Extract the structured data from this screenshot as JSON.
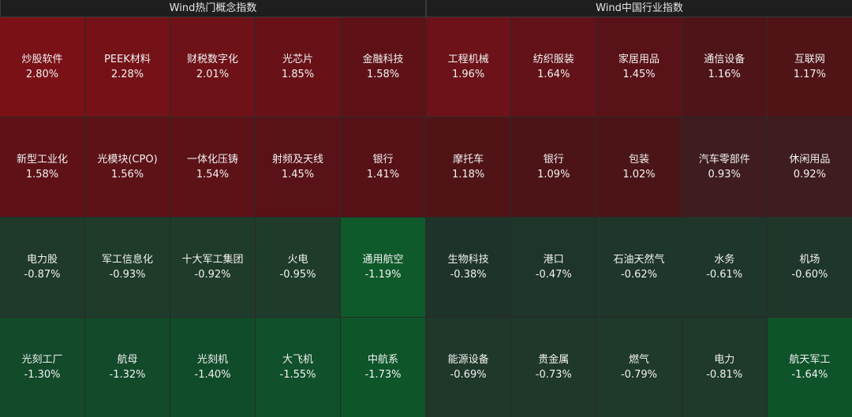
{
  "left": {
    "title": "Wind热门概念指数",
    "tiles": [
      {
        "name": "炒股软件",
        "pct": "2.80%",
        "color": "#7a1117"
      },
      {
        "name": "PEEK材料",
        "pct": "2.28%",
        "color": "#741218"
      },
      {
        "name": "财税数字化",
        "pct": "2.01%",
        "color": "#6e1218"
      },
      {
        "name": "光芯片",
        "pct": "1.85%",
        "color": "#681218"
      },
      {
        "name": "金融科技",
        "pct": "1.58%",
        "color": "#5e1217"
      },
      {
        "name": "新型工业化",
        "pct": "1.58%",
        "color": "#5e1217"
      },
      {
        "name": "光模块(CPO)",
        "pct": "1.56%",
        "color": "#5d1217"
      },
      {
        "name": "一体化压铸",
        "pct": "1.54%",
        "color": "#5c1217"
      },
      {
        "name": "射频及天线",
        "pct": "1.45%",
        "color": "#591217"
      },
      {
        "name": "银行",
        "pct": "1.41%",
        "color": "#571217"
      },
      {
        "name": "电力股",
        "pct": "-0.87%",
        "color": "#1f3a2a"
      },
      {
        "name": "军工信息化",
        "pct": "-0.93%",
        "color": "#1f3b2a"
      },
      {
        "name": "十大军工集团",
        "pct": "-0.92%",
        "color": "#1f3b2a"
      },
      {
        "name": "火电",
        "pct": "-0.95%",
        "color": "#1f3c2a"
      },
      {
        "name": "通用航空",
        "pct": "-1.19%",
        "color": "#0f5a2a"
      },
      {
        "name": "光刻工厂",
        "pct": "-1.30%",
        "color": "#124a2a"
      },
      {
        "name": "航母",
        "pct": "-1.32%",
        "color": "#124a2a"
      },
      {
        "name": "光刻机",
        "pct": "-1.40%",
        "color": "#114c2a"
      },
      {
        "name": "大飞机",
        "pct": "-1.55%",
        "color": "#10502a"
      },
      {
        "name": "中航系",
        "pct": "-1.73%",
        "color": "#0e552a"
      }
    ]
  },
  "right": {
    "title": "Wind中国行业指数",
    "tiles": [
      {
        "name": "工程机械",
        "pct": "1.96%",
        "color": "#6c1218"
      },
      {
        "name": "纺织服装",
        "pct": "1.64%",
        "color": "#621218"
      },
      {
        "name": "家居用品",
        "pct": "1.45%",
        "color": "#591217"
      },
      {
        "name": "通信设备",
        "pct": "1.16%",
        "color": "#4f1417"
      },
      {
        "name": "互联网",
        "pct": "1.17%",
        "color": "#501417"
      },
      {
        "name": "摩托车",
        "pct": "1.18%",
        "color": "#501417"
      },
      {
        "name": "银行",
        "pct": "1.09%",
        "color": "#4d1417"
      },
      {
        "name": "包装",
        "pct": "1.02%",
        "color": "#4b1517"
      },
      {
        "name": "汽车零部件",
        "pct": "0.93%",
        "color": "#3e1c1f"
      },
      {
        "name": "休闲用品",
        "pct": "0.92%",
        "color": "#3e1c1f"
      },
      {
        "name": "生物科技",
        "pct": "-0.38%",
        "color": "#1e342a"
      },
      {
        "name": "港口",
        "pct": "-0.47%",
        "color": "#1e352a"
      },
      {
        "name": "石油天然气",
        "pct": "-0.62%",
        "color": "#1f372a"
      },
      {
        "name": "水务",
        "pct": "-0.61%",
        "color": "#1f372a"
      },
      {
        "name": "机场",
        "pct": "-0.60%",
        "color": "#1f372a"
      },
      {
        "name": "能源设备",
        "pct": "-0.69%",
        "color": "#1f382a"
      },
      {
        "name": "贵金属",
        "pct": "-0.73%",
        "color": "#1f382a"
      },
      {
        "name": "燃气",
        "pct": "-0.79%",
        "color": "#1f392a"
      },
      {
        "name": "电力",
        "pct": "-0.81%",
        "color": "#1f392a"
      },
      {
        "name": "航天军工",
        "pct": "-1.64%",
        "color": "#0f532a"
      }
    ]
  }
}
